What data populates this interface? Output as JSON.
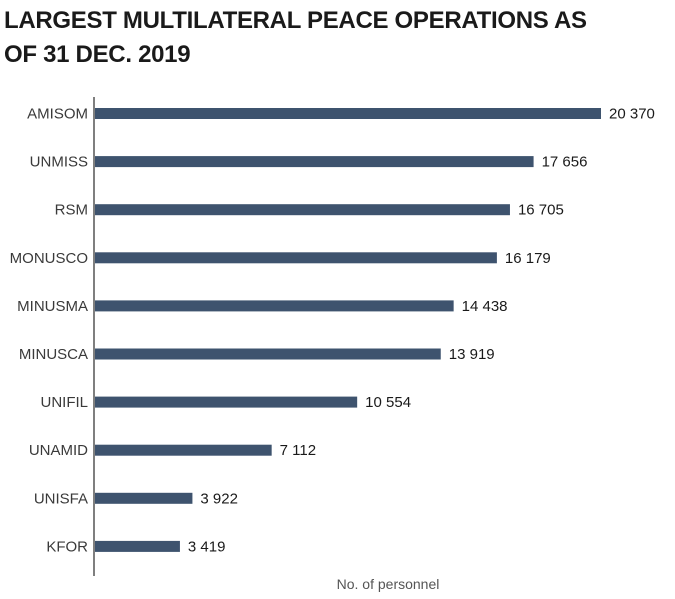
{
  "chart_data": {
    "type": "bar",
    "orientation": "horizontal",
    "title": "LARGEST MULTILATERAL PEACE OPERATIONS AS OF 31 DEC. 2019",
    "xlabel": "No. of personnel",
    "ylabel": "",
    "categories": [
      "AMISOM",
      "UNMISS",
      "RSM",
      "MONUSCO",
      "MINUSMA",
      "MINUSCA",
      "UNIFIL",
      "UNAMID",
      "UNISFA",
      "KFOR"
    ],
    "values": [
      20370,
      17656,
      16705,
      16179,
      14438,
      13919,
      10554,
      7112,
      3922,
      3419
    ],
    "value_labels": [
      "20 370",
      "17 656",
      "16 705",
      "16 179",
      "14 438",
      "13 919",
      "10 554",
      "7 112",
      "3 922",
      "3 419"
    ],
    "xlim": [
      0,
      20370
    ],
    "grid": false,
    "legend": "none",
    "colors": {
      "bar": "#3e536e",
      "axis": "#555555",
      "text": "#1a1a1a"
    }
  }
}
